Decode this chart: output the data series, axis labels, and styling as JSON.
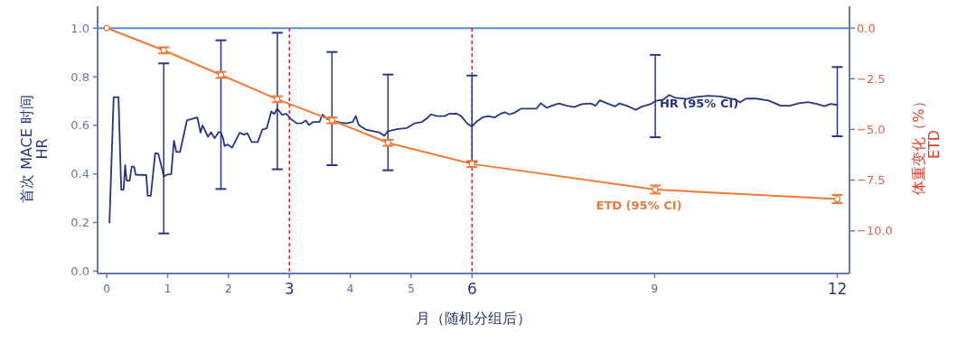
{
  "chart_data": {
    "type": "line",
    "xlabel": "月（随机分组后）",
    "ylabel": "首次 MACE 时间\nHR",
    "y2label": "体重变化（%）\nETD",
    "grid": false,
    "xlim": [
      -0.15,
      12.2
    ],
    "ylim": [
      -0.01,
      1.09
    ],
    "y2lim": [
      -12.1,
      1.07
    ],
    "xticks": [
      0,
      1,
      2,
      {
        "value": 3,
        "label": "3"
      },
      4,
      5,
      {
        "value": 6,
        "label": "6"
      },
      9,
      {
        "value": 12,
        "label": "12"
      }
    ],
    "yticks": [
      {
        "value": 0,
        "label": "0.0"
      },
      {
        "value": 0.2,
        "label": "0.2"
      },
      {
        "value": 0.4,
        "label": "0.4"
      },
      {
        "value": 0.6,
        "label": "0.6"
      },
      {
        "value": 0.8,
        "label": "0.8"
      },
      {
        "value": 1,
        "label": "1.0"
      }
    ],
    "y2ticks": [
      {
        "value": 0,
        "label": "0.0"
      },
      {
        "value": -2.5,
        "label": "−2.5"
      },
      {
        "value": -5,
        "label": "−5.0"
      },
      {
        "value": -7.5,
        "label": "−7.5"
      },
      {
        "value": -10,
        "label": "−10.0"
      }
    ],
    "ref_lines": [
      {
        "axis": "y",
        "value": 1,
        "color": "#4a8fe8",
        "line_style": "solid"
      },
      {
        "axis": "x",
        "value": 3,
        "color": "#d42a2a",
        "line_style": "dashed"
      },
      {
        "axis": "x",
        "value": 6,
        "color": "#d42a2a",
        "line_style": "dashed"
      }
    ],
    "series": [
      {
        "name": "HR (95% CI)",
        "marker": "none",
        "color": "#27367f",
        "x": [
          0.045,
          0.114,
          0.193,
          0.238,
          0.277,
          0.302,
          0.327,
          0.376,
          0.411,
          0.45,
          0.475,
          0.649,
          0.673,
          0.723,
          0.797,
          0.847,
          0.921,
          0.936,
          0.995,
          1.059,
          1.104,
          1.144,
          1.203,
          1.317,
          1.366,
          1.49,
          1.54,
          1.574,
          1.663,
          1.713,
          1.772,
          1.837,
          1.876,
          1.911,
          1.936,
          1.985,
          2.06,
          2.183,
          2.257,
          2.307,
          2.381,
          2.48,
          2.555,
          2.629,
          2.703,
          2.753,
          2.802,
          2.876,
          2.951,
          3.025,
          3.124,
          3.198,
          3.272,
          3.322,
          3.396,
          3.495,
          3.544,
          3.618,
          3.7,
          3.84,
          3.94,
          4.04,
          4.09,
          4.14,
          4.26,
          4.485,
          4.56,
          4.62,
          4.78,
          4.93,
          5.054,
          5.18,
          5.276,
          5.326,
          5.425,
          5.55,
          5.62,
          5.75,
          5.822,
          5.92,
          6.0,
          6.07,
          6.17,
          6.27,
          6.37,
          6.465,
          6.54,
          6.61,
          6.69,
          6.81,
          7.06,
          7.13,
          7.23,
          7.31,
          7.43,
          7.555,
          7.68,
          7.8,
          7.95,
          8.03,
          8.1,
          8.25,
          8.35,
          8.42,
          8.54,
          8.62,
          8.69,
          8.79,
          8.94,
          9.01,
          9.14,
          9.24,
          9.34,
          9.53,
          9.68,
          9.88,
          10.08,
          10.33,
          10.4,
          10.5,
          10.67,
          10.87,
          11.07,
          11.22,
          11.37,
          11.52,
          11.66,
          11.79,
          11.89,
          12.0
        ],
        "values": [
          0.2,
          0.716,
          0.716,
          0.335,
          0.335,
          0.436,
          0.372,
          0.372,
          0.43,
          0.43,
          0.397,
          0.395,
          0.31,
          0.31,
          0.486,
          0.483,
          0.409,
          0.39,
          0.397,
          0.399,
          0.537,
          0.49,
          0.49,
          0.62,
          0.624,
          0.632,
          0.57,
          0.6,
          0.553,
          0.572,
          0.547,
          0.572,
          0.57,
          0.547,
          0.515,
          0.521,
          0.508,
          0.569,
          0.562,
          0.568,
          0.531,
          0.531,
          0.582,
          0.588,
          0.657,
          0.647,
          0.669,
          0.644,
          0.647,
          0.626,
          0.608,
          0.608,
          0.62,
          0.601,
          0.614,
          0.614,
          0.644,
          0.626,
          0.62,
          0.611,
          0.608,
          0.614,
          0.638,
          0.601,
          0.582,
          0.57,
          0.557,
          0.576,
          0.585,
          0.589,
          0.608,
          0.614,
          0.632,
          0.645,
          0.638,
          0.638,
          0.647,
          0.648,
          0.638,
          0.608,
          0.595,
          0.614,
          0.632,
          0.638,
          0.632,
          0.647,
          0.654,
          0.645,
          0.651,
          0.669,
          0.669,
          0.691,
          0.672,
          0.681,
          0.69,
          0.681,
          0.675,
          0.687,
          0.69,
          0.681,
          0.703,
          0.687,
          0.678,
          0.69,
          0.681,
          0.672,
          0.664,
          0.677,
          0.688,
          0.7,
          0.706,
          0.725,
          0.713,
          0.709,
          0.717,
          0.722,
          0.719,
          0.706,
          0.694,
          0.71,
          0.71,
          0.702,
          0.681,
          0.681,
          0.691,
          0.696,
          0.688,
          0.679,
          0.688,
          0.684
        ],
        "errors": [
          null,
          null,
          null,
          null,
          null,
          null,
          null,
          null,
          null,
          null,
          null,
          null,
          null,
          null,
          null,
          null,
          null,
          [
            0.155,
            0.855
          ],
          null,
          null,
          null,
          null,
          null,
          null,
          null,
          null,
          null,
          null,
          null,
          null,
          null,
          null,
          [
            0.338,
            0.95
          ],
          null,
          null,
          null,
          null,
          null,
          null,
          null,
          null,
          null,
          null,
          null,
          null,
          null,
          [
            0.419,
            0.981
          ],
          null,
          null,
          null,
          null,
          null,
          null,
          null,
          null,
          null,
          null,
          null,
          [
            0.436,
            0.902
          ],
          null,
          null,
          null,
          null,
          null,
          null,
          null,
          null,
          [
            0.415,
            0.809
          ],
          null,
          null,
          null,
          null,
          null,
          null,
          null,
          null,
          null,
          null,
          null,
          null,
          [
            0.45,
            0.805
          ],
          null,
          null,
          null,
          null,
          null,
          null,
          null,
          null,
          null,
          null,
          null,
          null,
          null,
          null,
          null,
          null,
          null,
          null,
          null,
          null,
          null,
          null,
          null,
          null,
          null,
          null,
          null,
          null,
          [
            0.551,
            0.89
          ],
          null,
          null,
          null,
          null,
          null,
          null,
          null,
          null,
          null,
          null,
          null,
          null,
          null,
          null,
          null,
          null,
          null,
          null,
          null,
          [
            0.555,
            0.84
          ]
        ]
      },
      {
        "name": "ETD (95% CI)",
        "axis": "y2",
        "marker": "circle",
        "color": "#f07a36",
        "x": [
          0,
          0.936,
          1.876,
          2.8,
          3.7,
          4.62,
          6.0,
          9.01,
          12.0
        ],
        "values": [
          0,
          -1.1,
          -2.31,
          -3.51,
          -4.55,
          -5.66,
          -6.7,
          -7.96,
          -8.43
        ],
        "errors": [
          null,
          0.15,
          0.15,
          0.15,
          0.15,
          0.15,
          0.15,
          0.2,
          0.2
        ]
      }
    ]
  }
}
